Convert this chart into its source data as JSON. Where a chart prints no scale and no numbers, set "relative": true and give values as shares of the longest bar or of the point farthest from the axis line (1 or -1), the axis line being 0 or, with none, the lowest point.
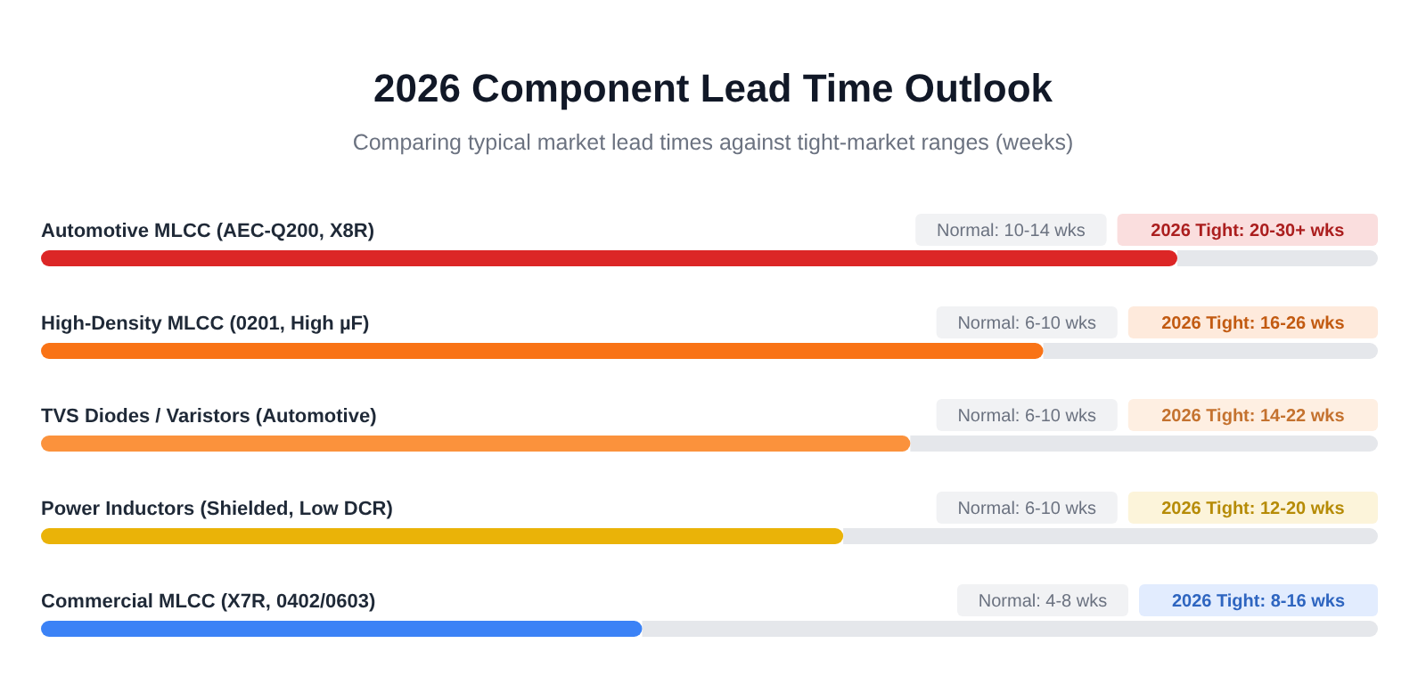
{
  "chart_data": {
    "type": "bar",
    "orientation": "horizontal",
    "relative": true,
    "title": "2026 Component Lead Time Outlook",
    "subtitle": "Comparing typical market lead times against tight-market ranges (weeks)",
    "categories": [
      "Automotive MLCC (AEC-Q200, X8R)",
      "High-Density MLCC (0201, High µF)",
      "TVS Diodes / Varistors (Automotive)",
      "Power Inductors (Shielded, Low DCR)",
      "Commercial MLCC (X7R, 0402/0603)"
    ],
    "values": [
      1,
      0.882,
      0.765,
      0.706,
      0.529
    ],
    "colors": [
      "#dc2626",
      "#f97316",
      "#fb923c",
      "#eab308",
      "#3b82f6"
    ],
    "annotations": [
      "Normal: 10-14 wks",
      "2026 Tight: 20-30+ wks",
      "Normal: 6-10 wks",
      "2026 Tight: 16-26 wks",
      "Normal: 6-10 wks",
      "2026 Tight: 14-22 wks",
      "Normal: 6-10 wks",
      "2026 Tight: 12-20 wks",
      "Normal: 4-8 wks",
      "2026 Tight: 8-16 wks"
    ]
  }
}
